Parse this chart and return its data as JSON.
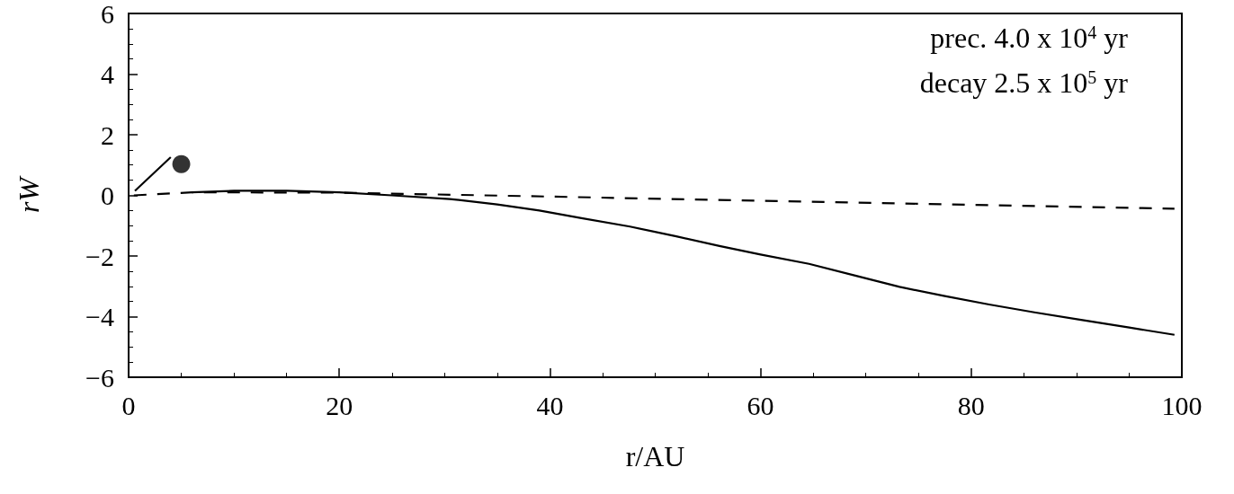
{
  "chart_data": {
    "type": "line",
    "xlabel": "r/AU",
    "ylabel": "rW",
    "xlim": [
      0,
      100
    ],
    "xticks": [
      0,
      20,
      40,
      60,
      80,
      100
    ],
    "ylim": [
      -6,
      6
    ],
    "yticks": [
      -6,
      -4,
      -2,
      0,
      2,
      4,
      6
    ],
    "grid": false,
    "annotations": [
      "prec. 4.0 x 10$^{4}$ yr",
      "decay 2.5 x 10$^{5}$ yr"
    ],
    "series": [
      {
        "color": "#000000",
        "line_style": "solid",
        "x": [
          6,
          10,
          15,
          20,
          25,
          30.5,
          35,
          39,
          43,
          47.6,
          52,
          56.1,
          60,
          64.6,
          69,
          73.2,
          77.5,
          81.7,
          86,
          90.3,
          95,
          99.3
        ],
        "values": [
          0.1,
          0.15,
          0.15,
          0.1,
          0.0,
          -0.12,
          -0.3,
          -0.5,
          -0.75,
          -1.03,
          -1.35,
          -1.67,
          -1.95,
          -2.26,
          -2.65,
          -3.02,
          -3.32,
          -3.6,
          -3.86,
          -4.1,
          -4.36,
          -4.6
        ]
      },
      {
        "color": "#000000",
        "line_style": "dashed",
        "x": [
          0.5,
          6,
          20,
          40,
          60,
          80,
          99.3
        ],
        "values": [
          0.0,
          0.1,
          0.09,
          -0.04,
          -0.18,
          -0.31,
          -0.44
        ]
      },
      {
        "color": "#000000",
        "line_style": "solid",
        "x": [
          0.6,
          4.0
        ],
        "values": [
          0.15,
          1.26
        ]
      },
      {
        "type": "scatter",
        "color": "#000000",
        "marker": "circle",
        "x": [
          5.0
        ],
        "values": [
          1.03
        ]
      }
    ]
  }
}
